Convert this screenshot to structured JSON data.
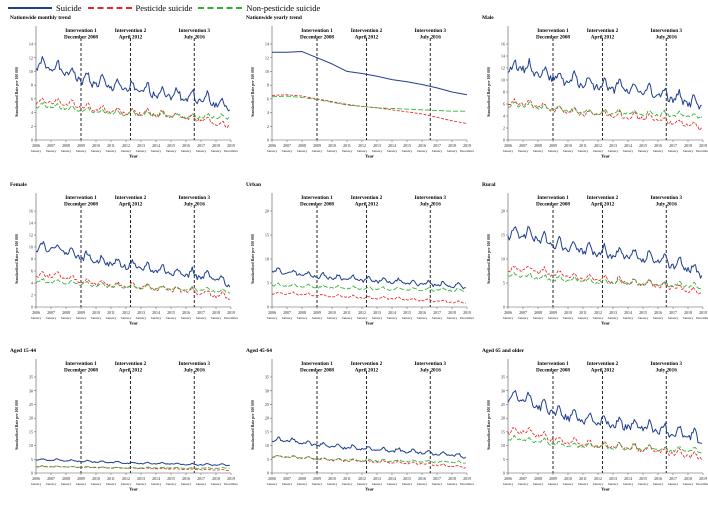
{
  "legend": {
    "suicide": "Suicide",
    "pesticide": "Pesticide suicide",
    "nonpesticide": "Non-pesticide suicide"
  },
  "colors": {
    "suicide": "#1f3f8f",
    "pesticide": "#e8292a",
    "nonpesticide": "#33b033",
    "axis": "#555555",
    "intervention": "#111111"
  },
  "shared": {
    "ylabel": "Standardised Rate per 100 000",
    "xlabel": "Year",
    "years": [
      "2006",
      "2007",
      "2008",
      "2009",
      "2010",
      "2011",
      "2012",
      "2013",
      "2014",
      "2015",
      "2016",
      "2017",
      "2018",
      "2019"
    ],
    "month_labels": [
      "January",
      "January",
      "January",
      "January",
      "January",
      "January",
      "January",
      "January",
      "January",
      "January",
      "January",
      "January",
      "January",
      "December"
    ],
    "interventions": [
      {
        "label": "Intervention 1",
        "date": "December 2008",
        "x": 2009.0
      },
      {
        "label": "Intervention 2",
        "date": "April 2012",
        "x": 2012.3
      },
      {
        "label": "Intervention 3",
        "date": "July 2016",
        "x": 2016.55
      }
    ]
  },
  "chart_data": [
    {
      "type": "line",
      "title": "Nationwide monthly trend",
      "ylim": [
        0,
        14
      ],
      "yticks": [
        0,
        2,
        4,
        6,
        8,
        10,
        12,
        14
      ],
      "series": [
        {
          "name": "Suicide",
          "level": [
            10.8,
            10.8,
            10.0,
            9.0,
            8.5,
            8.0,
            7.6,
            7.3,
            7.0,
            6.7,
            6.4,
            6.0,
            5.5,
            4.6
          ],
          "amp": 1.7
        },
        {
          "name": "Pesticide suicide",
          "level": [
            5.6,
            5.6,
            5.4,
            5.0,
            4.6,
            4.3,
            4.1,
            4.0,
            3.8,
            3.6,
            3.4,
            3.0,
            2.5,
            2.0
          ],
          "amp": 0.9
        },
        {
          "name": "Non-pesticide suicide",
          "level": [
            5.0,
            5.0,
            4.7,
            4.4,
            4.2,
            4.0,
            3.8,
            3.8,
            3.7,
            3.6,
            3.5,
            3.5,
            3.4,
            3.4
          ],
          "amp": 0.7
        }
      ]
    },
    {
      "type": "line",
      "title": "Nationwide yearly trend",
      "ylim": [
        0,
        14
      ],
      "yticks": [
        0,
        2,
        4,
        6,
        8,
        10,
        12,
        14
      ],
      "yearly": true,
      "series": [
        {
          "name": "Suicide",
          "x": [
            2006,
            2007,
            2008,
            2009,
            2010,
            2011,
            2012,
            2013,
            2014,
            2015,
            2016,
            2017,
            2018,
            2019
          ],
          "values": [
            12.8,
            12.8,
            12.9,
            12.0,
            11.1,
            10.0,
            9.7,
            9.3,
            8.8,
            8.5,
            8.1,
            7.6,
            7.0,
            6.6
          ]
        },
        {
          "name": "Pesticide suicide",
          "x": [
            2006,
            2007,
            2008,
            2009,
            2010,
            2011,
            2012,
            2013,
            2014,
            2015,
            2016,
            2017,
            2018,
            2019
          ],
          "values": [
            6.5,
            6.6,
            6.4,
            6.0,
            5.6,
            5.2,
            4.9,
            4.7,
            4.4,
            4.1,
            3.8,
            3.3,
            2.8,
            2.4
          ]
        },
        {
          "name": "Non-pesticide suicide",
          "x": [
            2006,
            2007,
            2008,
            2009,
            2010,
            2011,
            2012,
            2013,
            2014,
            2015,
            2016,
            2017,
            2018,
            2019
          ],
          "values": [
            6.3,
            6.4,
            6.2,
            5.9,
            5.5,
            5.1,
            4.9,
            4.7,
            4.6,
            4.5,
            4.4,
            4.3,
            4.2,
            4.2
          ]
        }
      ]
    },
    {
      "type": "line",
      "title": "Male",
      "ylim": [
        0,
        16
      ],
      "yticks": [
        0,
        2,
        4,
        6,
        8,
        10,
        12,
        14,
        16
      ],
      "series": [
        {
          "name": "Suicide",
          "level": [
            12.0,
            12.3,
            11.4,
            10.6,
            10.0,
            9.6,
            9.2,
            8.9,
            8.6,
            8.2,
            7.8,
            7.2,
            6.6,
            5.6
          ],
          "amp": 2.0
        },
        {
          "name": "Pesticide suicide",
          "level": [
            6.0,
            6.2,
            5.8,
            5.2,
            4.8,
            4.5,
            4.3,
            4.2,
            4.0,
            3.8,
            3.5,
            3.0,
            2.6,
            2.0
          ],
          "amp": 1.0
        },
        {
          "name": "Non-pesticide suicide",
          "level": [
            5.8,
            5.8,
            5.5,
            5.2,
            5.0,
            4.8,
            4.6,
            4.6,
            4.5,
            4.4,
            4.3,
            4.3,
            4.1,
            3.9
          ],
          "amp": 0.8
        }
      ]
    },
    {
      "type": "line",
      "title": "Female",
      "ylim": [
        0,
        16
      ],
      "yticks": [
        0,
        2,
        4,
        6,
        8,
        10,
        12,
        14,
        16
      ],
      "series": [
        {
          "name": "Suicide",
          "level": [
            10.0,
            10.0,
            9.4,
            8.5,
            7.9,
            7.4,
            7.0,
            6.6,
            6.3,
            5.9,
            5.6,
            5.2,
            4.8,
            3.8
          ],
          "amp": 1.5
        },
        {
          "name": "Pesticide suicide",
          "level": [
            5.3,
            5.4,
            5.0,
            4.4,
            4.0,
            3.8,
            3.5,
            3.4,
            3.2,
            3.0,
            2.8,
            2.4,
            2.0,
            1.6
          ],
          "amp": 0.9
        },
        {
          "name": "Non-pesticide suicide",
          "level": [
            4.3,
            4.3,
            4.1,
            3.9,
            3.7,
            3.5,
            3.4,
            3.3,
            3.2,
            3.1,
            3.0,
            2.9,
            2.7,
            2.5
          ],
          "amp": 0.6
        }
      ]
    },
    {
      "type": "line",
      "title": "Urban",
      "ylim": [
        0,
        20
      ],
      "yticks": [
        0,
        5,
        10,
        15,
        20
      ],
      "series": [
        {
          "name": "Suicide",
          "level": [
            7.5,
            7.3,
            6.9,
            6.5,
            6.2,
            6.0,
            5.7,
            5.5,
            5.3,
            5.1,
            4.9,
            4.7,
            4.5,
            4.3
          ],
          "amp": 1.0
        },
        {
          "name": "Pesticide suicide",
          "level": [
            2.9,
            2.8,
            2.7,
            2.5,
            2.3,
            2.2,
            2.0,
            1.9,
            1.8,
            1.6,
            1.5,
            1.3,
            1.1,
            0.9
          ],
          "amp": 0.5
        },
        {
          "name": "Non-pesticide suicide",
          "level": [
            4.6,
            4.5,
            4.4,
            4.2,
            4.1,
            4.0,
            3.9,
            3.8,
            3.7,
            3.7,
            3.6,
            3.6,
            3.5,
            3.5
          ],
          "amp": 0.6
        }
      ]
    },
    {
      "type": "line",
      "title": "Rural",
      "ylim": [
        0,
        20
      ],
      "yticks": [
        0,
        5,
        10,
        15,
        20
      ],
      "series": [
        {
          "name": "Suicide",
          "level": [
            15.0,
            15.5,
            14.5,
            13.2,
            12.5,
            12.0,
            11.5,
            11.0,
            10.7,
            10.2,
            9.8,
            9.2,
            8.4,
            6.8
          ],
          "amp": 2.3
        },
        {
          "name": "Pesticide suicide",
          "level": [
            7.8,
            8.0,
            7.6,
            6.9,
            6.4,
            6.0,
            5.8,
            5.6,
            5.3,
            5.0,
            4.7,
            4.2,
            3.6,
            3.0
          ],
          "amp": 1.3
        },
        {
          "name": "Non-pesticide suicide",
          "level": [
            6.5,
            6.5,
            6.2,
            5.9,
            5.7,
            5.5,
            5.3,
            5.2,
            5.1,
            4.9,
            4.8,
            4.7,
            4.5,
            4.2
          ],
          "amp": 1.0
        }
      ]
    },
    {
      "type": "line",
      "title": "Aged 15-44",
      "ylim": [
        0,
        35
      ],
      "yticks": [
        0,
        5,
        10,
        15,
        20,
        25,
        30,
        35
      ],
      "series": [
        {
          "name": "Suicide",
          "level": [
            4.8,
            4.8,
            4.6,
            4.3,
            4.1,
            3.9,
            3.7,
            3.6,
            3.5,
            3.4,
            3.2,
            3.1,
            3.0,
            2.8
          ],
          "amp": 0.6
        },
        {
          "name": "Pesticide suicide",
          "level": [
            2.4,
            2.4,
            2.3,
            2.1,
            2.0,
            1.9,
            1.8,
            1.7,
            1.6,
            1.5,
            1.4,
            1.3,
            1.2,
            1.0
          ],
          "amp": 0.3
        },
        {
          "name": "Non-pesticide suicide",
          "level": [
            2.3,
            2.3,
            2.2,
            2.2,
            2.1,
            2.0,
            1.9,
            1.9,
            1.9,
            1.9,
            1.8,
            1.8,
            1.8,
            1.8
          ],
          "amp": 0.3
        }
      ]
    },
    {
      "type": "line",
      "title": "Aged 45-64",
      "ylim": [
        0,
        35
      ],
      "yticks": [
        0,
        5,
        10,
        15,
        20,
        25,
        30,
        35
      ],
      "series": [
        {
          "name": "Suicide",
          "level": [
            12.0,
            12.0,
            11.2,
            10.4,
            9.8,
            9.4,
            9.0,
            8.6,
            8.3,
            8.0,
            7.6,
            7.2,
            6.6,
            5.6
          ],
          "amp": 1.5
        },
        {
          "name": "Pesticide suicide",
          "level": [
            6.0,
            6.0,
            5.6,
            5.1,
            4.8,
            4.5,
            4.3,
            4.1,
            3.9,
            3.7,
            3.4,
            3.0,
            2.6,
            2.0
          ],
          "amp": 0.8
        },
        {
          "name": "Non-pesticide suicide",
          "level": [
            6.0,
            6.0,
            5.6,
            5.3,
            5.0,
            4.9,
            4.7,
            4.5,
            4.4,
            4.3,
            4.2,
            4.2,
            4.0,
            3.6
          ],
          "amp": 0.7
        }
      ]
    },
    {
      "type": "line",
      "title": "Aged 65 and older",
      "ylim": [
        0,
        35
      ],
      "yticks": [
        0,
        5,
        10,
        15,
        20,
        25,
        30,
        35
      ],
      "series": [
        {
          "name": "Suicide",
          "level": [
            27.0,
            27.5,
            25.0,
            22.5,
            21.0,
            20.0,
            19.0,
            18.2,
            17.5,
            16.8,
            16.0,
            15.0,
            14.0,
            12.0
          ],
          "amp": 4.0
        },
        {
          "name": "Pesticide suicide",
          "level": [
            15.0,
            15.5,
            14.0,
            12.5,
            11.5,
            10.8,
            10.2,
            9.8,
            9.3,
            8.8,
            8.2,
            7.5,
            6.6,
            5.5
          ],
          "amp": 2.3
        },
        {
          "name": "Non-pesticide suicide",
          "level": [
            12.5,
            12.5,
            11.5,
            10.8,
            10.3,
            10.0,
            9.7,
            9.5,
            9.3,
            9.0,
            8.8,
            8.6,
            8.3,
            7.8
          ],
          "amp": 1.8
        }
      ]
    }
  ]
}
